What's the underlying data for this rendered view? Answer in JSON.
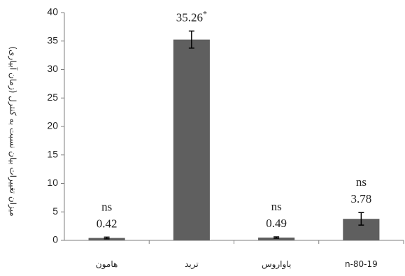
{
  "chart_data": {
    "type": "bar",
    "categories": [
      "هامون",
      "ترید",
      "یاواروس",
      "n-80-19"
    ],
    "values": [
      0.42,
      35.26,
      0.49,
      3.78
    ],
    "errors": [
      0.15,
      1.5,
      0.12,
      1.1
    ],
    "value_labels": [
      "0.42",
      "35.26",
      "0.49",
      "3.78"
    ],
    "significance": [
      "ns",
      "*",
      "ns",
      "ns"
    ],
    "ylabel": "میزان تغییرات بیان نسبت به کنترل (زمان آبیاری)",
    "ylim": [
      0,
      40
    ],
    "yticks": [
      0,
      5,
      10,
      15,
      20,
      25,
      30,
      35,
      40
    ],
    "grid": false,
    "bar_color": "#5f5f5f",
    "axis_color": "#7f7f7f"
  }
}
